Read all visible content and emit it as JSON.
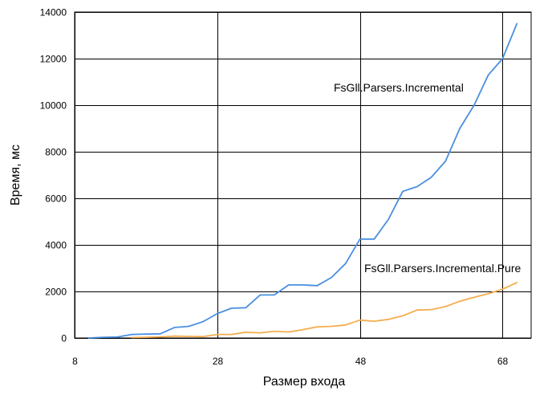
{
  "chart_data": {
    "type": "line",
    "xlabel": "Размер входа",
    "ylabel": "Время, мс",
    "xlim": [
      8,
      72
    ],
    "ylim": [
      0,
      14000
    ],
    "x_ticks": [
      8,
      28,
      48,
      68
    ],
    "y_ticks": [
      0,
      2000,
      4000,
      6000,
      8000,
      10000,
      12000,
      14000
    ],
    "x_tick_labels": [
      "8",
      "28",
      "48",
      "68"
    ],
    "y_tick_labels": [
      "0",
      "2000",
      "4000",
      "6000",
      "8000",
      "10000",
      "12000",
      "14000"
    ],
    "grid": {
      "vertical": true,
      "horizontal": true
    },
    "series": [
      {
        "name": "FsGll.Parsers.Incremental",
        "color": "#4a8fe0",
        "x": [
          10,
          12,
          14,
          16,
          18,
          20,
          22,
          24,
          26,
          28,
          30,
          32,
          34,
          36,
          38,
          40,
          42,
          44,
          46,
          48,
          50,
          52,
          54,
          56,
          58,
          60,
          62,
          64,
          66,
          68,
          70
        ],
        "y": [
          0,
          30,
          40,
          150,
          170,
          180,
          450,
          500,
          700,
          1050,
          1280,
          1300,
          1850,
          1850,
          2280,
          2280,
          2250,
          2600,
          3200,
          4250,
          4250,
          5100,
          6300,
          6500,
          6900,
          7600,
          9000,
          10000,
          11300,
          12000,
          13500
        ]
      },
      {
        "name": "FsGll.Parsers.Incremental.Pure",
        "color": "#f5ad4e",
        "x": [
          16,
          18,
          20,
          22,
          24,
          26,
          28,
          30,
          32,
          34,
          36,
          38,
          40,
          42,
          44,
          46,
          48,
          50,
          52,
          54,
          56,
          58,
          60,
          62,
          64,
          66,
          68,
          70
        ],
        "y": [
          20,
          30,
          50,
          80,
          70,
          60,
          150,
          150,
          250,
          220,
          290,
          260,
          360,
          480,
          500,
          560,
          770,
          720,
          800,
          950,
          1200,
          1220,
          1350,
          1580,
          1750,
          1900,
          2100,
          2380
        ]
      }
    ]
  }
}
